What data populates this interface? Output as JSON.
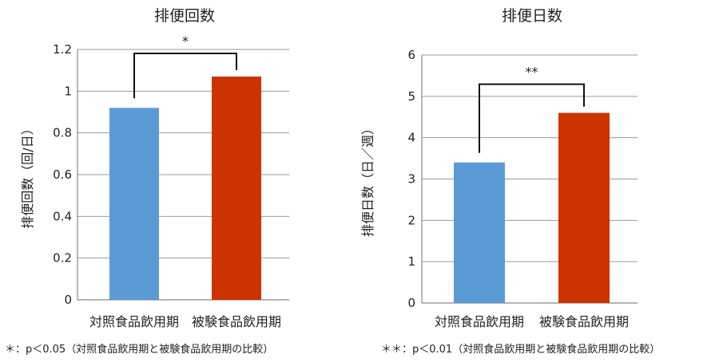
{
  "chart_data": [
    {
      "type": "bar",
      "title": "排便回数",
      "ylabel": "排便回数（回/日）",
      "xlabel": "",
      "categories": [
        "対照食品飲用期",
        "被験食品飲用期"
      ],
      "values": [
        0.92,
        1.07
      ],
      "colors": [
        "#5b9bd5",
        "#cc3300"
      ],
      "ylim": [
        0,
        1.2
      ],
      "yticks": [
        "0",
        "0.2",
        "0.4",
        "0.6",
        "0.8",
        "1",
        "1.2"
      ],
      "grid": true,
      "significance": "*",
      "footnote": "＊：p＜0.05（対照食品飲用期と被験食品飲用期の比較）"
    },
    {
      "type": "bar",
      "title": "排便日数",
      "ylabel": "排便日数（日／週）",
      "xlabel": "",
      "categories": [
        "対照食品飲用期",
        "被験食品飲用期"
      ],
      "values": [
        3.4,
        4.6
      ],
      "colors": [
        "#5b9bd5",
        "#cc3300"
      ],
      "ylim": [
        0,
        6
      ],
      "yticks": [
        "0",
        "1",
        "2",
        "3",
        "4",
        "5",
        "6"
      ],
      "grid": true,
      "significance": "**",
      "footnote": "＊＊：p＜0.01（対照食品飲用期と被験食品飲用期の比較）"
    }
  ]
}
